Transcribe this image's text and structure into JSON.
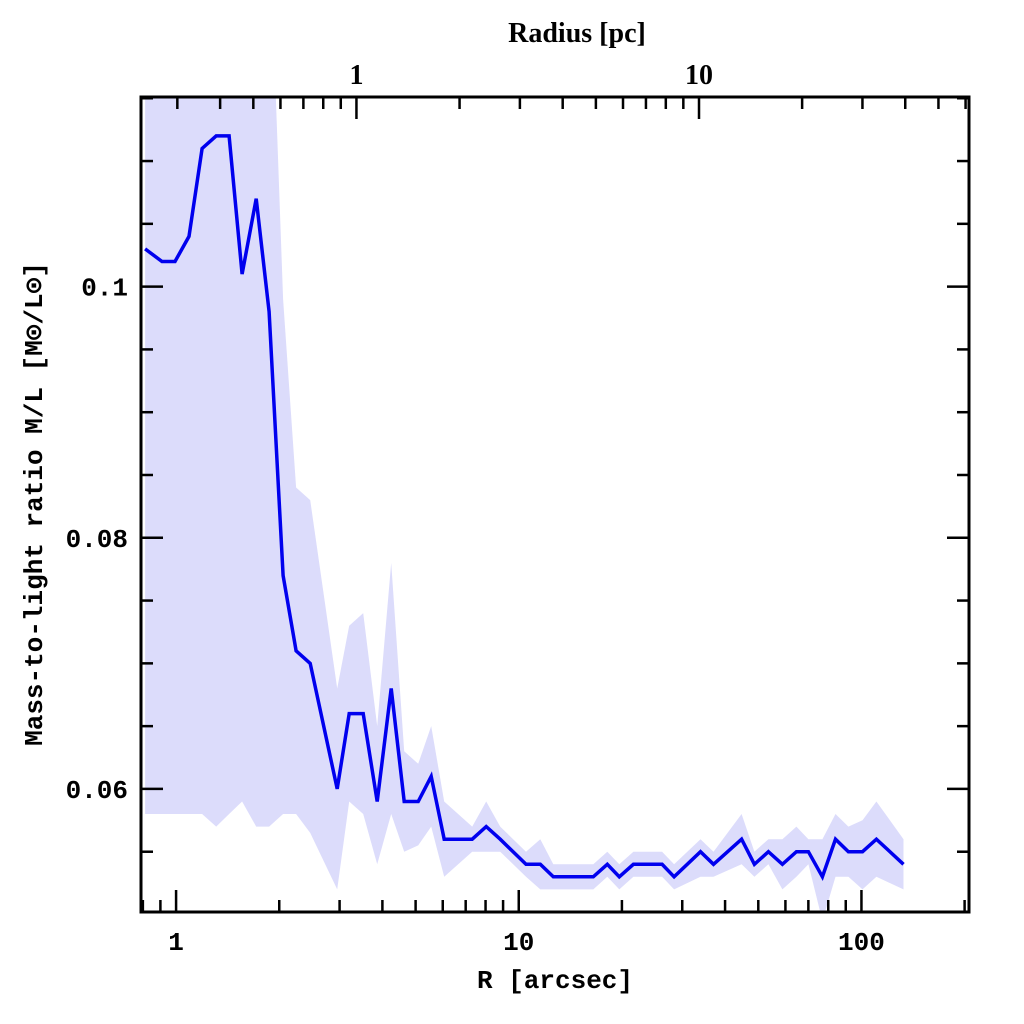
{
  "chart_data": {
    "type": "line",
    "title": "",
    "xlabel": "R [arcsec]",
    "ylabel": "Mass-to-light ratio M/L [M⊙/L⊙]",
    "top_xlabel": "Radius [pc]",
    "xscale": "log",
    "xlim": [
      0.79,
      206
    ],
    "ylim": [
      0.0502,
      0.1151
    ],
    "top_xlim_pc": [
      0.235,
      61.4
    ],
    "x_ticks": [
      "1",
      "10",
      "100"
    ],
    "x_tick_values": [
      1,
      10,
      100
    ],
    "top_x_ticks": [
      "1",
      "10"
    ],
    "top_x_tick_values": [
      1,
      10
    ],
    "y_ticks": [
      "0.06",
      "0.08",
      "0.1"
    ],
    "y_tick_values": [
      0.06,
      0.08,
      0.1
    ],
    "grid": false,
    "colors": {
      "line": "#0000ee",
      "band": "#dcdcfb"
    },
    "series": [
      {
        "name": "M/L",
        "x": [
          0.812,
          0.91,
          0.993,
          1.091,
          1.191,
          1.309,
          1.428,
          1.558,
          1.713,
          1.868,
          2.053,
          2.24,
          2.462,
          2.952,
          3.2,
          3.516,
          3.863,
          4.244,
          4.631,
          5.088,
          5.554,
          6.061,
          7.315,
          8.037,
          8.83,
          10.5,
          11.56,
          12.61,
          16.5,
          18.13,
          19.65,
          21.6,
          26.2,
          28.4,
          33.9,
          37.0,
          44.7,
          48.7,
          53.5,
          58.8,
          64.6,
          70.0,
          76.9,
          84.0,
          91.6,
          100.7,
          110.6,
          132.7
        ],
        "y": [
          0.103,
          0.102,
          0.102,
          0.104,
          0.111,
          0.112,
          0.112,
          0.101,
          0.107,
          0.098,
          0.077,
          0.071,
          0.07,
          0.06,
          0.066,
          0.066,
          0.059,
          0.068,
          0.059,
          0.059,
          0.061,
          0.056,
          0.056,
          0.057,
          0.056,
          0.054,
          0.054,
          0.053,
          0.053,
          0.054,
          0.053,
          0.054,
          0.054,
          0.053,
          0.055,
          0.054,
          0.056,
          0.054,
          0.055,
          0.054,
          0.055,
          0.055,
          0.053,
          0.056,
          0.055,
          0.055,
          0.056,
          0.054
        ],
        "upper": [
          0.13,
          0.13,
          0.13,
          0.13,
          0.13,
          0.13,
          0.13,
          0.13,
          0.13,
          0.13,
          0.099,
          0.084,
          0.083,
          0.068,
          0.073,
          0.074,
          0.065,
          0.078,
          0.063,
          0.062,
          0.065,
          0.059,
          0.057,
          0.059,
          0.057,
          0.055,
          0.056,
          0.054,
          0.054,
          0.055,
          0.054,
          0.055,
          0.055,
          0.054,
          0.056,
          0.055,
          0.058,
          0.055,
          0.056,
          0.056,
          0.057,
          0.056,
          0.056,
          0.058,
          0.057,
          0.0575,
          0.059,
          0.056
        ],
        "lower": [
          0.058,
          0.058,
          0.058,
          0.058,
          0.058,
          0.057,
          0.058,
          0.059,
          0.057,
          0.057,
          0.058,
          0.058,
          0.0565,
          0.052,
          0.059,
          0.058,
          0.054,
          0.058,
          0.055,
          0.0555,
          0.057,
          0.053,
          0.055,
          0.055,
          0.055,
          0.053,
          0.052,
          0.052,
          0.052,
          0.053,
          0.052,
          0.053,
          0.053,
          0.052,
          0.053,
          0.053,
          0.054,
          0.053,
          0.054,
          0.052,
          0.053,
          0.054,
          0.0495,
          0.053,
          0.053,
          0.052,
          0.053,
          0.052
        ]
      }
    ]
  }
}
